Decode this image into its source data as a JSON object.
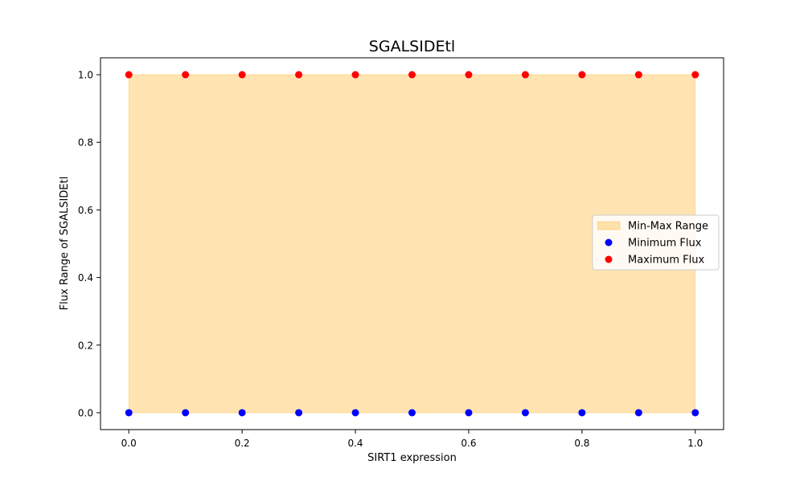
{
  "chart_data": {
    "type": "scatter",
    "title": "SGALSIDEtl",
    "xlabel": "SIRT1 expression",
    "ylabel": "Flux Range of SGALSIDEtl",
    "xlim": [
      -0.05,
      1.05
    ],
    "ylim": [
      -0.05,
      1.05
    ],
    "x_ticks": [
      0.0,
      0.2,
      0.4,
      0.6,
      0.8,
      1.0
    ],
    "x_tick_labels": [
      "0.0",
      "0.2",
      "0.4",
      "0.6",
      "0.8",
      "1.0"
    ],
    "y_ticks": [
      0.0,
      0.2,
      0.4,
      0.6,
      0.8,
      1.0
    ],
    "y_tick_labels": [
      "0.0",
      "0.2",
      "0.4",
      "0.6",
      "0.8",
      "1.0"
    ],
    "grid": false,
    "legend_position": "center-right",
    "x": [
      0.0,
      0.1,
      0.2,
      0.3,
      0.4,
      0.5,
      0.6,
      0.7,
      0.8,
      0.9,
      1.0
    ],
    "band": {
      "name": "Min-Max Range",
      "lower": [
        0,
        0,
        0,
        0,
        0,
        0,
        0,
        0,
        0,
        0,
        0
      ],
      "upper": [
        1,
        1,
        1,
        1,
        1,
        1,
        1,
        1,
        1,
        1,
        1
      ],
      "color": "#ffa500",
      "alpha": 0.3
    },
    "series": [
      {
        "name": "Minimum Flux",
        "values": [
          0,
          0,
          0,
          0,
          0,
          0,
          0,
          0,
          0,
          0,
          0
        ],
        "color": "#0000ff"
      },
      {
        "name": "Maximum Flux",
        "values": [
          1,
          1,
          1,
          1,
          1,
          1,
          1,
          1,
          1,
          1,
          1
        ],
        "color": "#ff0000"
      }
    ]
  }
}
